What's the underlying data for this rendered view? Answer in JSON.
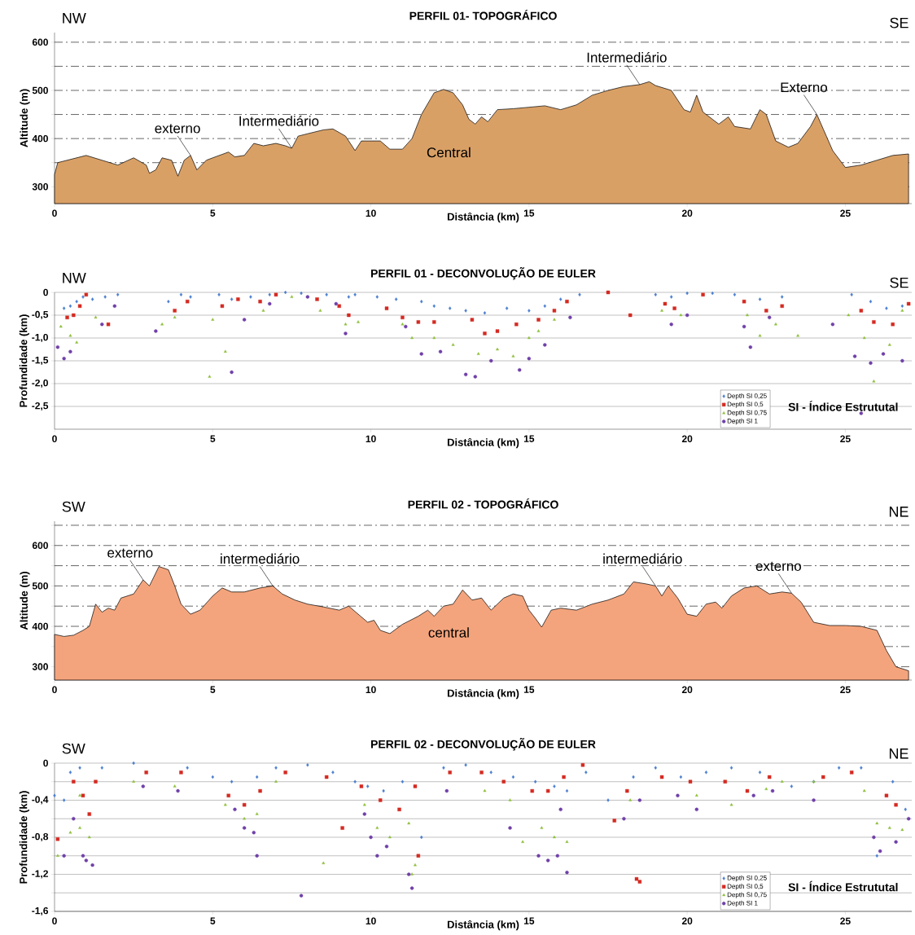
{
  "chart_data": [
    {
      "type": "area",
      "title": "PERFIL 01- TOPOGRÁFICO",
      "xlabel": "Distância (km)",
      "ylabel": "Altitude (m)",
      "color": "#d9a066",
      "grid": "y",
      "xlim": [
        0,
        27.1
      ],
      "ylim": [
        265,
        620
      ],
      "xticks": [
        0,
        5,
        10,
        15,
        20,
        25
      ],
      "yticks": [
        300,
        {
          "value": 350,
          "label": null
        },
        400,
        {
          "value": 450,
          "label": null
        },
        500,
        {
          "value": 550,
          "label": null
        },
        600
      ],
      "x": [
        0,
        0.1,
        1.0,
        1.5,
        2.0,
        2.5,
        2.9,
        3.0,
        3.2,
        3.4,
        3.7,
        3.9,
        4.1,
        4.3,
        4.5,
        4.8,
        5.0,
        5.5,
        5.7,
        6.0,
        6.3,
        6.6,
        7.0,
        7.3,
        7.5,
        7.7,
        8.0,
        8.5,
        8.8,
        9.2,
        9.5,
        9.7,
        10.3,
        10.6,
        11.0,
        11.3,
        11.6,
        12.0,
        12.3,
        12.6,
        12.9,
        13.1,
        13.3,
        13.5,
        13.7,
        14.0,
        14.5,
        15.0,
        15.5,
        16.0,
        16.5,
        17.0,
        17.5,
        18.0,
        18.5,
        18.8,
        19.0,
        19.5,
        19.9,
        20.1,
        20.3,
        20.5,
        20.8,
        21.0,
        21.3,
        21.5,
        22.0,
        22.3,
        22.5,
        22.8,
        23.2,
        23.5,
        23.9,
        24.1,
        24.3,
        24.6,
        25.0,
        25.5,
        26.0,
        26.5,
        27.0
      ],
      "values": [
        325,
        350,
        365,
        355,
        345,
        360,
        345,
        328,
        335,
        360,
        355,
        322,
        355,
        365,
        335,
        355,
        360,
        372,
        362,
        365,
        390,
        385,
        390,
        385,
        380,
        405,
        410,
        418,
        420,
        405,
        375,
        395,
        395,
        378,
        378,
        400,
        450,
        495,
        502,
        495,
        470,
        440,
        430,
        445,
        435,
        460,
        462,
        465,
        468,
        460,
        470,
        490,
        500,
        508,
        512,
        518,
        510,
        500,
        460,
        455,
        490,
        455,
        440,
        430,
        445,
        425,
        420,
        460,
        450,
        395,
        382,
        390,
        425,
        450,
        420,
        375,
        340,
        345,
        355,
        365,
        368
      ],
      "annotations": [
        "NW",
        "SE",
        "Central",
        {
          "text": "externo",
          "x": 4.3,
          "y": 365
        },
        {
          "text": "Intermediário",
          "x": 7.5,
          "y": 380
        },
        {
          "text": "Intermediário",
          "x": 18.5,
          "y": 512
        },
        {
          "text": "Externo",
          "x": 24.1,
          "y": 450
        }
      ]
    },
    {
      "type": "scatter",
      "title": "PERFIL 01 - DECONVOLUÇÃO DE EULER",
      "xlabel": "Distância (km)",
      "ylabel": "Profundidade (km)",
      "grid": "y",
      "legend": "bottom right",
      "xlim": [
        0,
        27.1
      ],
      "ylim": [
        -3.0,
        0
      ],
      "xticks": [
        0,
        5,
        10,
        15,
        20,
        25
      ],
      "yticks": [
        {
          "value": -2.5,
          "label": "-2,5"
        },
        {
          "value": -2.0,
          "label": "-2,0"
        },
        {
          "value": -1.5,
          "label": "-1,5"
        },
        {
          "value": -1.0,
          "label": "-1,0"
        },
        {
          "value": -0.5,
          "label": "-0,5"
        },
        0
      ],
      "annotations": [
        "NW",
        "SE",
        "SI - Índice Estrututal"
      ],
      "series": [
        {
          "name": "Depth SI 0,25",
          "color": "#4a7fd0",
          "marker": "diamond",
          "x": [
            0.3,
            0.5,
            0.7,
            0.9,
            1.2,
            1.6,
            2.0,
            3.6,
            4.0,
            4.3,
            5.2,
            5.6,
            6.2,
            6.8,
            7.3,
            7.8,
            8.6,
            9.3,
            9.5,
            10.2,
            10.8,
            11.6,
            12.0,
            12.5,
            13.0,
            13.6,
            14.3,
            15.0,
            15.5,
            16.0,
            16.6,
            19.0,
            19.5,
            20.0,
            20.8,
            21.5,
            22.3,
            23.0,
            25.2,
            25.8,
            26.3,
            26.8
          ],
          "values": [
            -0.35,
            -0.3,
            -0.2,
            -0.1,
            -0.15,
            -0.1,
            -0.05,
            -0.2,
            -0.05,
            -0.1,
            -0.05,
            -0.15,
            -0.1,
            -0.05,
            0,
            -0.02,
            -0.05,
            -0.1,
            -0.05,
            -0.1,
            -0.15,
            -0.2,
            -0.3,
            -0.35,
            -0.4,
            -0.45,
            -0.35,
            -0.4,
            -0.3,
            -0.15,
            -0.05,
            -0.05,
            -0.1,
            -0.02,
            -0.02,
            -0.05,
            -0.15,
            -0.1,
            -0.05,
            -0.2,
            -0.35,
            -0.3
          ]
        },
        {
          "name": "Depth SI 0,5",
          "color": "#d42a22",
          "marker": "square",
          "x": [
            0.4,
            0.6,
            0.8,
            1.0,
            1.7,
            3.8,
            4.2,
            5.3,
            5.8,
            6.5,
            7.0,
            8.3,
            9.0,
            9.3,
            10.5,
            11.0,
            11.5,
            12.0,
            13.2,
            13.6,
            14.0,
            14.6,
            15.3,
            15.8,
            16.2,
            17.5,
            18.2,
            19.3,
            19.6,
            20.5,
            21.8,
            22.5,
            23.0,
            25.5,
            25.9,
            26.5,
            27.0
          ],
          "values": [
            -0.55,
            -0.5,
            -0.3,
            -0.05,
            -0.7,
            -0.4,
            -0.2,
            -0.3,
            -0.15,
            -0.2,
            -0.05,
            -0.15,
            -0.3,
            -0.5,
            -0.35,
            -0.55,
            -0.65,
            -0.65,
            -0.6,
            -0.9,
            -0.85,
            -0.7,
            -0.6,
            -0.4,
            -0.2,
            0,
            -0.5,
            -0.25,
            -0.35,
            -0.05,
            -0.2,
            -0.4,
            -0.3,
            -0.4,
            -0.65,
            -0.7,
            -0.25
          ]
        },
        {
          "name": "Depth SI 0,75",
          "color": "#8fc03c",
          "marker": "triangle",
          "x": [
            0.2,
            0.5,
            0.7,
            1.3,
            3.4,
            3.8,
            4.9,
            5.4,
            5.0,
            6.6,
            7.5,
            8.4,
            9.2,
            9.6,
            11.0,
            11.3,
            12.0,
            12.6,
            13.4,
            14.0,
            14.5,
            15.0,
            15.3,
            15.8,
            19.2,
            19.8,
            21.9,
            22.3,
            22.8,
            23.5,
            25.1,
            25.6,
            25.9,
            26.4,
            26.8
          ],
          "values": [
            -0.75,
            -0.95,
            -1.1,
            -0.55,
            -0.7,
            -0.55,
            -1.85,
            -1.3,
            -0.6,
            -0.4,
            -0.1,
            -0.4,
            -0.7,
            -0.65,
            -0.7,
            -1.0,
            -1.0,
            -1.15,
            -1.35,
            -1.25,
            -1.4,
            -1.0,
            -0.85,
            -0.6,
            -0.4,
            -0.5,
            -0.5,
            -0.95,
            -0.7,
            -0.95,
            -0.5,
            -1.0,
            -1.95,
            -1.15,
            -0.4
          ]
        },
        {
          "name": "Depth SI 1",
          "color": "#7040a8",
          "marker": "circle",
          "x": [
            0.1,
            0.3,
            0.5,
            1.5,
            1.9,
            3.2,
            5.6,
            6.0,
            6.8,
            8.0,
            8.9,
            9.2,
            11.1,
            11.6,
            12.2,
            13.0,
            13.3,
            13.8,
            14.7,
            15.0,
            15.5,
            16.3,
            19.5,
            20.0,
            21.8,
            22.0,
            22.6,
            24.6,
            25.3,
            25.5,
            25.8,
            26.2,
            26.8
          ],
          "values": [
            -1.2,
            -1.45,
            -1.3,
            -0.7,
            -0.3,
            -0.85,
            -1.75,
            -0.6,
            -0.25,
            -0.1,
            -0.25,
            -0.9,
            -0.75,
            -1.35,
            -1.3,
            -1.8,
            -1.85,
            -1.5,
            -1.7,
            -1.45,
            -1.15,
            -0.55,
            -0.7,
            -0.5,
            -0.75,
            -1.2,
            -0.55,
            -0.7,
            -1.4,
            -2.65,
            -1.55,
            -1.35,
            -1.5
          ]
        }
      ]
    },
    {
      "type": "area",
      "title": "PERFIL 02 - TOPOGRÁFICO",
      "xlabel": "Distância (km)",
      "ylabel": "Altitude (m)",
      "color": "#f4a47c",
      "grid": "y",
      "xlim": [
        0,
        27.1
      ],
      "ylim": [
        267,
        660
      ],
      "xticks": [
        0,
        5,
        10,
        15,
        20,
        25
      ],
      "yticks": [
        300,
        {
          "value": 350,
          "label": null
        },
        400,
        {
          "value": 450,
          "label": null
        },
        500,
        {
          "value": 550,
          "label": null
        },
        600,
        {
          "value": 650,
          "label": null
        }
      ],
      "x": [
        0,
        0.3,
        0.6,
        0.9,
        1.1,
        1.3,
        1.5,
        1.7,
        1.9,
        2.1,
        2.5,
        2.8,
        3.0,
        3.3,
        3.6,
        3.8,
        4.0,
        4.3,
        4.6,
        5.0,
        5.3,
        5.6,
        6.0,
        6.5,
        6.9,
        7.2,
        7.6,
        8.0,
        8.5,
        9.0,
        9.3,
        9.6,
        9.9,
        10.1,
        10.3,
        10.6,
        11.0,
        11.5,
        11.8,
        12.0,
        12.3,
        12.6,
        12.9,
        13.2,
        13.5,
        13.8,
        14.2,
        14.5,
        14.8,
        15.0,
        15.2,
        15.4,
        15.7,
        16.0,
        16.5,
        17.0,
        17.5,
        18.0,
        18.3,
        18.7,
        19.0,
        19.2,
        19.4,
        19.7,
        20.0,
        20.3,
        20.6,
        20.9,
        21.1,
        21.4,
        21.8,
        22.2,
        22.6,
        23.0,
        23.3,
        23.6,
        24.0,
        24.5,
        25.0,
        25.5,
        26.0,
        26.3,
        26.6,
        27.0
      ],
      "values": [
        380,
        375,
        378,
        390,
        400,
        455,
        435,
        445,
        440,
        470,
        480,
        515,
        500,
        548,
        540,
        500,
        455,
        430,
        440,
        475,
        495,
        485,
        485,
        495,
        500,
        480,
        465,
        455,
        448,
        440,
        450,
        430,
        410,
        415,
        390,
        382,
        405,
        425,
        440,
        425,
        450,
        455,
        490,
        465,
        470,
        440,
        470,
        480,
        475,
        440,
        420,
        398,
        440,
        445,
        440,
        455,
        465,
        480,
        510,
        505,
        500,
        475,
        500,
        470,
        430,
        425,
        455,
        460,
        445,
        475,
        495,
        500,
        480,
        485,
        482,
        460,
        410,
        402,
        402,
        400,
        390,
        340,
        300,
        290
      ],
      "annotations": [
        "SW",
        "NE",
        "central",
        {
          "text": "externo",
          "x": 2.8,
          "y": 515
        },
        {
          "text": "intermediário",
          "x": 6.9,
          "y": 500
        },
        {
          "text": "intermediário",
          "x": 19.0,
          "y": 500
        },
        {
          "text": "externo",
          "x": 23.3,
          "y": 482
        }
      ]
    },
    {
      "type": "scatter",
      "title": "PERFIL 02 - DECONVOLUÇÃO DE EULER",
      "xlabel": "Distância (km)",
      "ylabel": "Profundidade (km)",
      "grid": "y",
      "legend": "bottom right",
      "xlim": [
        0,
        27.1
      ],
      "ylim": [
        -1.6,
        0
      ],
      "xticks": [
        0,
        5,
        10,
        15,
        20,
        25
      ],
      "yticks": [
        {
          "value": -1.6,
          "label": "-1,6"
        },
        {
          "value": -1.4,
          "label": null
        },
        {
          "value": -1.2,
          "label": "-1,2"
        },
        {
          "value": -1.0,
          "label": null
        },
        {
          "value": -0.8,
          "label": "-0,8"
        },
        {
          "value": -0.6,
          "label": null
        },
        {
          "value": -0.4,
          "label": "-0,4"
        },
        {
          "value": -0.2,
          "label": null
        },
        0
      ],
      "annotations": [
        "SW",
        "NE",
        "SI - Índice Estrututal"
      ],
      "series": [
        {
          "name": "Depth SI 0,25",
          "color": "#4a7fd0",
          "marker": "diamond",
          "x": [
            0.0,
            0.3,
            0.5,
            0.8,
            1.5,
            2.5,
            4.2,
            5.0,
            5.6,
            6.4,
            7.0,
            8.0,
            8.8,
            9.5,
            9.9,
            10.4,
            11.0,
            11.6,
            12.3,
            13.0,
            13.8,
            14.5,
            15.2,
            15.8,
            16.2,
            16.8,
            17.5,
            18.3,
            19.0,
            19.8,
            20.6,
            21.4,
            22.3,
            23.3,
            24.0,
            24.8,
            25.5,
            26.0,
            26.5,
            26.9
          ],
          "values": [
            -0.35,
            -0.4,
            -0.1,
            -0.05,
            -0.05,
            0,
            -0.05,
            -0.15,
            -0.2,
            -0.15,
            -0.05,
            -0.02,
            -0.1,
            -0.2,
            -0.25,
            -0.3,
            -0.2,
            -0.8,
            -0.05,
            -0.02,
            -0.1,
            -0.15,
            -0.2,
            -0.25,
            -0.3,
            -0.1,
            -0.4,
            -0.15,
            -0.05,
            -0.15,
            -0.1,
            -0.05,
            -0.1,
            -0.25,
            -0.2,
            -0.05,
            -0.05,
            -1.0,
            -0.2,
            -0.5
          ]
        },
        {
          "name": "Depth SI 0,5",
          "color": "#d42a22",
          "marker": "square",
          "x": [
            0.1,
            0.6,
            0.9,
            1.1,
            1.3,
            2.9,
            4.0,
            5.5,
            6.0,
            6.5,
            7.3,
            8.6,
            9.1,
            9.7,
            10.3,
            10.9,
            11.4,
            11.5,
            12.5,
            13.5,
            14.2,
            15.1,
            15.6,
            16.1,
            16.7,
            17.7,
            18.1,
            18.4,
            18.5,
            19.2,
            20.1,
            21.2,
            21.9,
            22.6,
            24.3,
            25.2,
            26.3,
            26.6
          ],
          "values": [
            -0.82,
            -0.2,
            -0.35,
            -0.55,
            -0.2,
            -0.1,
            -0.1,
            -0.35,
            -0.45,
            -0.3,
            -0.1,
            -0.15,
            -0.7,
            -0.25,
            -0.4,
            -0.5,
            -0.25,
            -1.0,
            -0.1,
            -0.1,
            -0.2,
            -0.3,
            -0.3,
            -0.15,
            -0.02,
            -0.62,
            -0.3,
            -1.25,
            -1.28,
            -0.15,
            -0.2,
            -0.2,
            -0.3,
            -0.15,
            -0.15,
            -0.1,
            -0.35,
            -0.45
          ]
        },
        {
          "name": "Depth SI 0,75",
          "color": "#8fc03c",
          "marker": "triangle",
          "x": [
            0.1,
            0.5,
            0.8,
            1.1,
            0.8,
            2.5,
            3.8,
            5.4,
            6.0,
            6.4,
            7.0,
            8.5,
            9.8,
            10.2,
            10.6,
            11.3,
            11.4,
            11.2,
            13.6,
            14.4,
            14.8,
            15.4,
            15.8,
            16.2,
            18.2,
            20.3,
            21.4,
            22.5,
            23.0,
            24.0,
            25.6,
            26.0,
            26.4,
            26.8
          ],
          "values": [
            -1.0,
            -0.75,
            -0.7,
            -0.8,
            -0.35,
            -0.2,
            -0.25,
            -0.45,
            -0.6,
            -0.55,
            -0.2,
            -1.08,
            -0.45,
            -0.7,
            -0.8,
            -1.2,
            -1.1,
            -0.65,
            -0.3,
            -0.4,
            -0.85,
            -0.7,
            -0.8,
            -0.85,
            -0.4,
            -0.35,
            -0.45,
            -0.28,
            -0.2,
            -0.2,
            -0.3,
            -0.65,
            -0.7,
            -0.72
          ]
        },
        {
          "name": "Depth SI 1",
          "color": "#7040a8",
          "marker": "circle",
          "x": [
            0.3,
            0.6,
            0.9,
            1.0,
            1.2,
            2.8,
            3.9,
            5.7,
            6.0,
            6.3,
            6.4,
            7.8,
            9.8,
            10.0,
            10.2,
            10.5,
            11.2,
            11.3,
            12.4,
            14.4,
            15.3,
            15.6,
            15.9,
            16.2,
            16.0,
            18.0,
            18.5,
            19.7,
            20.3,
            22.1,
            22.7,
            24.0,
            25.9,
            26.1,
            26.6,
            27.0
          ],
          "values": [
            -1.0,
            -0.6,
            -1.0,
            -1.05,
            -1.1,
            -0.25,
            -0.3,
            -0.5,
            -0.7,
            -0.75,
            -1.0,
            -1.43,
            -0.55,
            -0.8,
            -1.0,
            -0.9,
            -1.2,
            -1.35,
            -0.3,
            -0.7,
            -1.0,
            -1.05,
            -1.0,
            -1.18,
            -0.5,
            -0.6,
            -0.4,
            -0.35,
            -0.5,
            -0.35,
            -0.3,
            -0.4,
            -0.8,
            -0.95,
            -0.85,
            -0.6
          ]
        }
      ]
    }
  ]
}
